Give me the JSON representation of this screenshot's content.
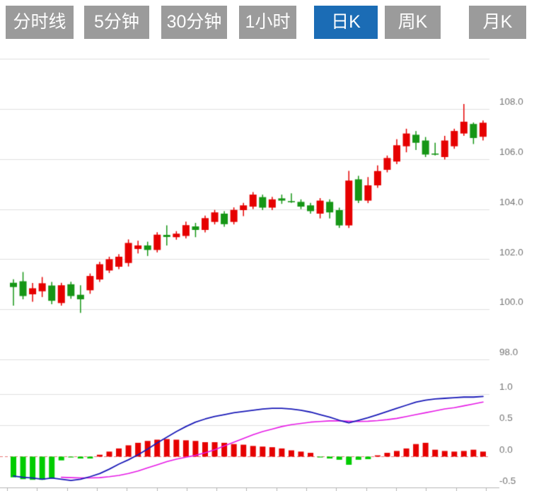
{
  "tabs": {
    "active_label": "日K",
    "items": [
      {
        "label": "分时线",
        "active": false
      },
      {
        "label": "5分钟",
        "active": false
      },
      {
        "label": "30分钟",
        "active": false
      },
      {
        "label": "1小时",
        "active": false
      },
      {
        "label": "日K",
        "active": true
      },
      {
        "label": "周K",
        "active": false
      },
      {
        "label": "月K",
        "active": false
      }
    ]
  },
  "colors": {
    "up_candle": "#e60000",
    "down_candle": "#169616",
    "hist_up": "#e60000",
    "hist_down": "#00cc00",
    "dif_line": "#1a1ab8",
    "dea_line": "#e61ae6",
    "grid": "#e0e0e0",
    "zero_line_dashed": "#e87878",
    "axis": "#b5b5b5",
    "axis_text": "#757575",
    "tab_gray": "#9b9b9b",
    "tab_active_blue": "#1b6cb5"
  },
  "chart_data": [
    {
      "type": "candlestick",
      "title": "",
      "ylabel": "",
      "ylim": [
        97.0,
        110.0
      ],
      "grid": true,
      "y_axis_labels": [
        {
          "text": "108.0",
          "value": 108.0
        },
        {
          "text": "106.0",
          "value": 106.0
        },
        {
          "text": "104.0",
          "value": 104.0
        },
        {
          "text": "102.0",
          "value": 102.0
        },
        {
          "text": "100.0",
          "value": 100.0
        },
        {
          "text": "98.0",
          "value": 98.0
        }
      ],
      "note": "red = up (close>open), green = down, Chinese market convention",
      "ohlc": [
        {
          "o": 101.06,
          "c": 100.89,
          "h": 101.2,
          "l": 100.15
        },
        {
          "o": 101.12,
          "c": 100.53,
          "h": 101.49,
          "l": 100.4
        },
        {
          "o": 100.6,
          "c": 100.84,
          "h": 101.05,
          "l": 100.3
        },
        {
          "o": 100.72,
          "c": 101.04,
          "h": 101.29,
          "l": 100.49
        },
        {
          "o": 100.95,
          "c": 100.34,
          "h": 101.09,
          "l": 100.2
        },
        {
          "o": 100.25,
          "c": 100.96,
          "h": 101.06,
          "l": 100.15
        },
        {
          "o": 101.0,
          "c": 100.53,
          "h": 101.1,
          "l": 100.42
        },
        {
          "o": 100.58,
          "c": 100.4,
          "h": 100.96,
          "l": 99.86
        },
        {
          "o": 100.76,
          "c": 101.33,
          "h": 101.43,
          "l": 100.62
        },
        {
          "o": 101.19,
          "c": 101.8,
          "h": 101.9,
          "l": 101.09
        },
        {
          "o": 101.55,
          "c": 102.0,
          "h": 102.1,
          "l": 101.45
        },
        {
          "o": 101.7,
          "c": 102.1,
          "h": 102.2,
          "l": 101.6
        },
        {
          "o": 101.85,
          "c": 102.65,
          "h": 102.79,
          "l": 101.71
        },
        {
          "o": 102.41,
          "c": 102.55,
          "h": 102.74,
          "l": 102.23
        },
        {
          "o": 102.55,
          "c": 102.37,
          "h": 102.7,
          "l": 102.13
        },
        {
          "o": 102.37,
          "c": 102.98,
          "h": 103.08,
          "l": 102.27
        },
        {
          "o": 102.97,
          "c": 102.89,
          "h": 103.35,
          "l": 102.55
        },
        {
          "o": 102.88,
          "c": 103.02,
          "h": 103.12,
          "l": 102.78
        },
        {
          "o": 102.93,
          "c": 103.36,
          "h": 103.5,
          "l": 102.83
        },
        {
          "o": 103.31,
          "c": 103.17,
          "h": 103.45,
          "l": 102.88
        },
        {
          "o": 103.17,
          "c": 103.64,
          "h": 103.74,
          "l": 103.07
        },
        {
          "o": 103.49,
          "c": 103.87,
          "h": 103.97,
          "l": 103.39
        },
        {
          "o": 103.82,
          "c": 103.4,
          "h": 103.92,
          "l": 103.3
        },
        {
          "o": 103.49,
          "c": 103.97,
          "h": 104.07,
          "l": 103.39
        },
        {
          "o": 103.96,
          "c": 104.15,
          "h": 104.25,
          "l": 103.72
        },
        {
          "o": 104.1,
          "c": 104.58,
          "h": 104.68,
          "l": 104.0
        },
        {
          "o": 104.48,
          "c": 104.06,
          "h": 104.58,
          "l": 103.96
        },
        {
          "o": 104.06,
          "c": 104.39,
          "h": 104.49,
          "l": 103.96
        },
        {
          "o": 104.43,
          "c": 104.34,
          "h": 104.58,
          "l": 104.21
        },
        {
          "o": 104.32,
          "c": 104.28,
          "h": 104.63,
          "l": 104.25
        },
        {
          "o": 104.29,
          "c": 104.1,
          "h": 104.39,
          "l": 104.0
        },
        {
          "o": 104.15,
          "c": 103.92,
          "h": 104.25,
          "l": 103.82
        },
        {
          "o": 103.82,
          "c": 104.34,
          "h": 104.44,
          "l": 103.63
        },
        {
          "o": 104.29,
          "c": 103.87,
          "h": 104.39,
          "l": 103.63
        },
        {
          "o": 103.96,
          "c": 103.35,
          "h": 104.06,
          "l": 103.25
        },
        {
          "o": 103.35,
          "c": 105.14,
          "h": 105.53,
          "l": 103.25
        },
        {
          "o": 105.19,
          "c": 104.34,
          "h": 105.33,
          "l": 104.24
        },
        {
          "o": 104.34,
          "c": 104.95,
          "h": 105.28,
          "l": 104.24
        },
        {
          "o": 104.95,
          "c": 105.52,
          "h": 105.75,
          "l": 104.85
        },
        {
          "o": 105.57,
          "c": 106.04,
          "h": 106.14,
          "l": 105.47
        },
        {
          "o": 105.9,
          "c": 106.55,
          "h": 106.79,
          "l": 105.8
        },
        {
          "o": 106.51,
          "c": 107.02,
          "h": 107.21,
          "l": 106.27
        },
        {
          "o": 106.97,
          "c": 106.65,
          "h": 107.12,
          "l": 106.36
        },
        {
          "o": 106.74,
          "c": 106.18,
          "h": 106.88,
          "l": 106.08
        },
        {
          "o": 106.22,
          "c": 106.18,
          "h": 106.65,
          "l": 106.14
        },
        {
          "o": 106.08,
          "c": 106.74,
          "h": 106.93,
          "l": 105.98
        },
        {
          "o": 106.51,
          "c": 107.12,
          "h": 107.21,
          "l": 106.41
        },
        {
          "o": 107.02,
          "c": 107.49,
          "h": 108.2,
          "l": 106.93
        },
        {
          "o": 107.4,
          "c": 106.84,
          "h": 107.46,
          "l": 106.6
        },
        {
          "o": 106.89,
          "c": 107.45,
          "h": 107.54,
          "l": 106.74
        }
      ]
    },
    {
      "type": "macd",
      "title": "",
      "ylim": [
        -0.5,
        1.0
      ],
      "grid": true,
      "y_axis_labels": [
        {
          "text": "1.0",
          "value": 1.0
        },
        {
          "text": "0.5",
          "value": 0.5
        },
        {
          "text": "0.0",
          "value": 0.0
        },
        {
          "text": "-0.5",
          "value": -0.5
        }
      ],
      "series": [
        {
          "name": "MACD-histogram",
          "values": [
            -0.33,
            -0.36,
            -0.37,
            -0.37,
            -0.35,
            -0.06,
            -0.01,
            -0.03,
            -0.03,
            0.03,
            0.08,
            0.13,
            0.18,
            0.22,
            0.25,
            0.27,
            0.28,
            0.27,
            0.26,
            0.25,
            0.23,
            0.23,
            0.22,
            0.2,
            0.19,
            0.17,
            0.16,
            0.15,
            0.13,
            0.1,
            0.08,
            0.06,
            -0.01,
            -0.03,
            -0.05,
            -0.13,
            -0.05,
            -0.04,
            0.02,
            0.06,
            0.09,
            0.13,
            0.2,
            0.22,
            0.11,
            0.09,
            0.08,
            0.09,
            0.11,
            0.08
          ]
        },
        {
          "name": "DIF",
          "values": [
            -0.31,
            -0.33,
            -0.34,
            -0.36,
            -0.34,
            -0.36,
            -0.38,
            -0.36,
            -0.32,
            -0.27,
            -0.2,
            -0.12,
            -0.05,
            0.03,
            0.12,
            0.22,
            0.31,
            0.4,
            0.48,
            0.55,
            0.6,
            0.64,
            0.67,
            0.7,
            0.72,
            0.74,
            0.76,
            0.77,
            0.77,
            0.76,
            0.74,
            0.71,
            0.67,
            0.63,
            0.58,
            0.54,
            0.58,
            0.62,
            0.67,
            0.72,
            0.77,
            0.82,
            0.87,
            0.9,
            0.92,
            0.93,
            0.94,
            0.95,
            0.95,
            0.96
          ]
        },
        {
          "name": "DEA",
          "values": [
            null,
            null,
            null,
            null,
            null,
            -0.33,
            -0.335,
            -0.34,
            -0.34,
            -0.335,
            -0.32,
            -0.3,
            -0.27,
            -0.23,
            -0.18,
            -0.13,
            -0.08,
            -0.04,
            -0.01,
            0.02,
            0.06,
            0.11,
            0.17,
            0.23,
            0.29,
            0.35,
            0.4,
            0.44,
            0.48,
            0.51,
            0.53,
            0.55,
            0.56,
            0.57,
            0.57,
            0.565,
            0.56,
            0.565,
            0.575,
            0.59,
            0.61,
            0.64,
            0.67,
            0.7,
            0.73,
            0.76,
            0.78,
            0.81,
            0.84,
            0.87
          ]
        }
      ]
    }
  ]
}
